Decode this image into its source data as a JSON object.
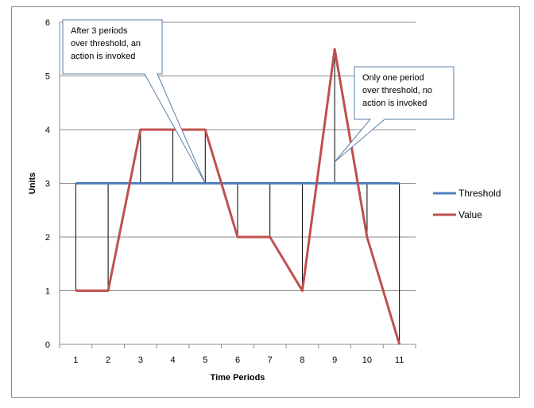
{
  "chart_data": {
    "type": "line",
    "title": "",
    "xlabel": "Time Periods",
    "ylabel": "Units",
    "x": [
      1,
      2,
      3,
      4,
      5,
      6,
      7,
      8,
      9,
      10,
      11
    ],
    "ylim": [
      0,
      6
    ],
    "yticks": [
      0,
      1,
      2,
      3,
      4,
      5,
      6
    ],
    "grid": "horizontal",
    "legend_position": "right",
    "series": [
      {
        "name": "Threshold",
        "color": "#4f81bd",
        "values": [
          3,
          3,
          3,
          3,
          3,
          3,
          3,
          3,
          3,
          3,
          3
        ]
      },
      {
        "name": "Value",
        "color": "#c0504d",
        "values": [
          1,
          1,
          4,
          4,
          4,
          2,
          2,
          1,
          5.5,
          2,
          0
        ]
      }
    ],
    "annotations": [
      {
        "lines": [
          "After 3 periods",
          "over threshold, an",
          "action is invoked"
        ],
        "points_to_x": 5,
        "points_to_y": 3
      },
      {
        "lines": [
          "Only one period",
          "over threshold, no",
          "action is invoked"
        ],
        "points_to_x": 9,
        "points_to_y": 3.4
      }
    ]
  }
}
